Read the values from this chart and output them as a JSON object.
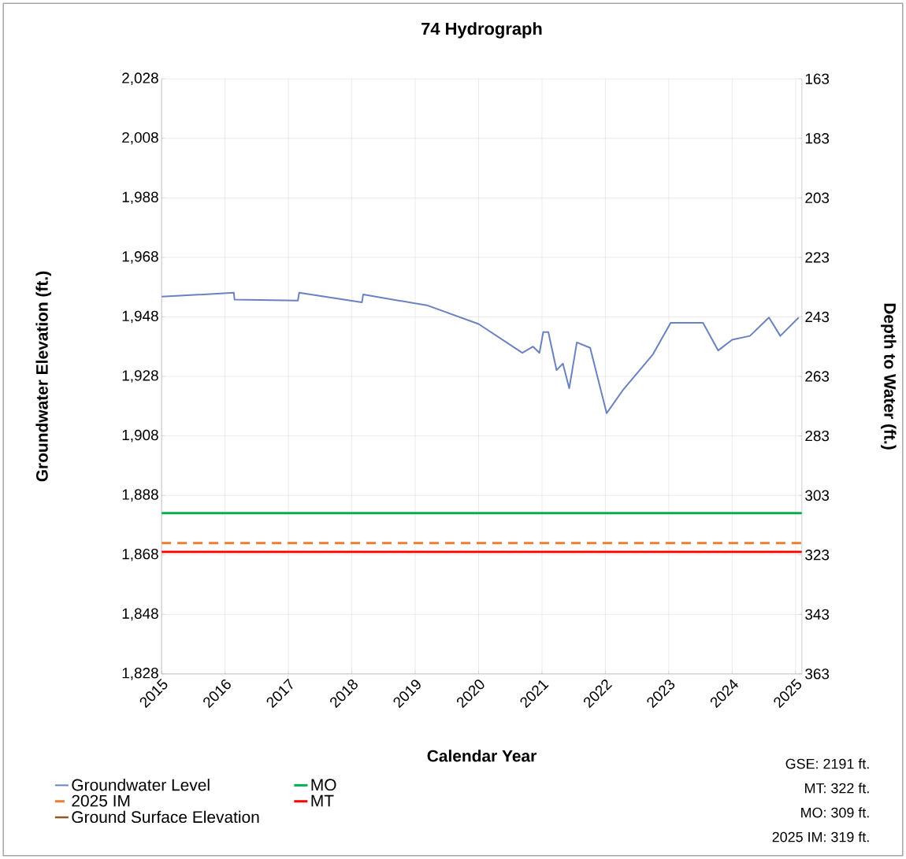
{
  "chart_data": {
    "type": "line",
    "title": "74 Hydrograph",
    "xlabel": "Calendar Year",
    "ylabel": "Groundwater Elevation (ft.)",
    "y2label": "Depth to Water (ft.)",
    "xlim": [
      2015,
      2025.1
    ],
    "xticks": [
      2015,
      2016,
      2017,
      2018,
      2019,
      2020,
      2021,
      2022,
      2023,
      2024,
      2025
    ],
    "ylim": [
      1828,
      2028
    ],
    "yticks": [
      {
        "value": 1828,
        "label": "1,828"
      },
      {
        "value": 1848,
        "label": "1,848"
      },
      {
        "value": 1868,
        "label": "1,868"
      },
      {
        "value": 1888,
        "label": "1,888"
      },
      {
        "value": 1908,
        "label": "1,908"
      },
      {
        "value": 1928,
        "label": "1,928"
      },
      {
        "value": 1948,
        "label": "1,948"
      },
      {
        "value": 1968,
        "label": "1,968"
      },
      {
        "value": 1988,
        "label": "1,988"
      },
      {
        "value": 2008,
        "label": "2,008"
      },
      {
        "value": 2028,
        "label": "2,028"
      }
    ],
    "y2lim": [
      363,
      163
    ],
    "y2ticks": [
      163,
      183,
      203,
      223,
      243,
      263,
      283,
      303,
      323,
      343,
      363
    ],
    "grid": true,
    "legend": "bottom left",
    "line_style": "solid",
    "series": [
      {
        "name": "Groundwater Level",
        "color": "#6a82c0",
        "x": [
          2015.0,
          2016.14,
          2016.15,
          2017.15,
          2017.17,
          2018.16,
          2018.18,
          2019.2,
          2020.0,
          2020.69,
          2020.86,
          2020.96,
          2021.02,
          2021.1,
          2021.23,
          2021.33,
          2021.43,
          2021.55,
          2021.76,
          2022.02,
          2022.28,
          2022.75,
          2023.03,
          2023.54,
          2023.78,
          2024.0,
          2024.28,
          2024.58,
          2024.76,
          2025.05
        ],
        "values": [
          1954.8,
          1956.1,
          1953.8,
          1953.5,
          1956.1,
          1952.9,
          1955.5,
          1951.8,
          1945.6,
          1935.9,
          1938,
          1935.9,
          1942.9,
          1942.9,
          1930.1,
          1932.3,
          1924,
          1939.4,
          1937.6,
          1915.6,
          1923.5,
          1935.4,
          1946,
          1946,
          1936.7,
          1940.3,
          1941.6,
          1947.8,
          1941.6,
          1947.8
        ]
      },
      {
        "name": "Ground Surface Elevation",
        "color": "#8b5a2b"
      }
    ],
    "ref_lines": [
      {
        "axis": "y",
        "value": 1882,
        "label": "MO",
        "color": "#00b050",
        "line_style": "solid"
      },
      {
        "axis": "y",
        "value": 1872,
        "label": "2025 IM",
        "color": "#ed7d31",
        "line_style": "dashed"
      },
      {
        "axis": "y",
        "value": 1869,
        "label": "MT",
        "color": "#ff0000",
        "line_style": "solid"
      }
    ],
    "annotations": [
      "GSE: 2191 ft.",
      "MT: 322 ft.",
      "MO: 309 ft.",
      "2025 IM: 319 ft."
    ]
  }
}
